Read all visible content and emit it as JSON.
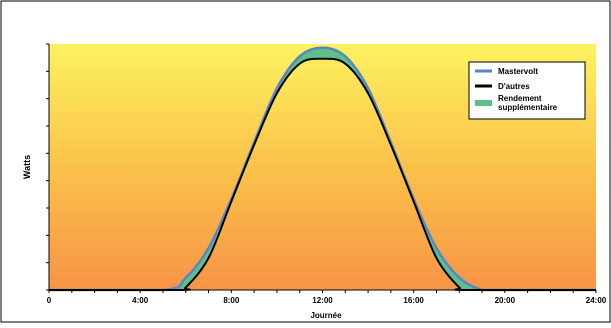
{
  "chart_data": {
    "type": "area",
    "title": "",
    "xlabel": "Journée",
    "ylabel": "Watts",
    "x_tick_labels": [
      "0",
      "4:00",
      "8:00",
      "12:00",
      "16:00",
      "20:00",
      "24:00"
    ],
    "x_tick_values": [
      0,
      4,
      8,
      12,
      16,
      20,
      24
    ],
    "xlim": [
      0,
      24
    ],
    "ylim": [
      0,
      1
    ],
    "y_ticks_labeled": false,
    "grid": false,
    "legend_position": "top-right",
    "background": "vertical gradient yellow (top) to orange (bottom)",
    "series": [
      {
        "name": "Mastervolt",
        "color": "#5b86c6",
        "x": [
          0,
          5,
          6,
          7,
          8,
          9,
          10,
          11,
          12,
          13,
          14,
          15,
          16,
          17,
          18,
          19,
          20,
          24
        ],
        "values": [
          0,
          0,
          0.05,
          0.17,
          0.37,
          0.6,
          0.82,
          0.95,
          0.985,
          0.95,
          0.82,
          0.6,
          0.37,
          0.17,
          0.05,
          0,
          0,
          0
        ]
      },
      {
        "name": "D'autres",
        "color": "#000000",
        "x": [
          0,
          5.7,
          6,
          7,
          8,
          9,
          10,
          11,
          12,
          13,
          14,
          15,
          16,
          17,
          18,
          18.3,
          24
        ],
        "values": [
          0,
          0,
          0.01,
          0.13,
          0.36,
          0.59,
          0.8,
          0.92,
          0.94,
          0.92,
          0.8,
          0.59,
          0.36,
          0.13,
          0.01,
          0,
          0
        ]
      }
    ],
    "fill_between": {
      "name": "Rendement supplémentaire",
      "color": "#5dbf8a",
      "between": [
        "Mastervolt",
        "D'autres"
      ]
    }
  },
  "legend": {
    "mastervolt": "Mastervolt",
    "dautres": "D'autres",
    "rendement_line1": "Rendement",
    "rendement_line2": "supplémentaire"
  }
}
